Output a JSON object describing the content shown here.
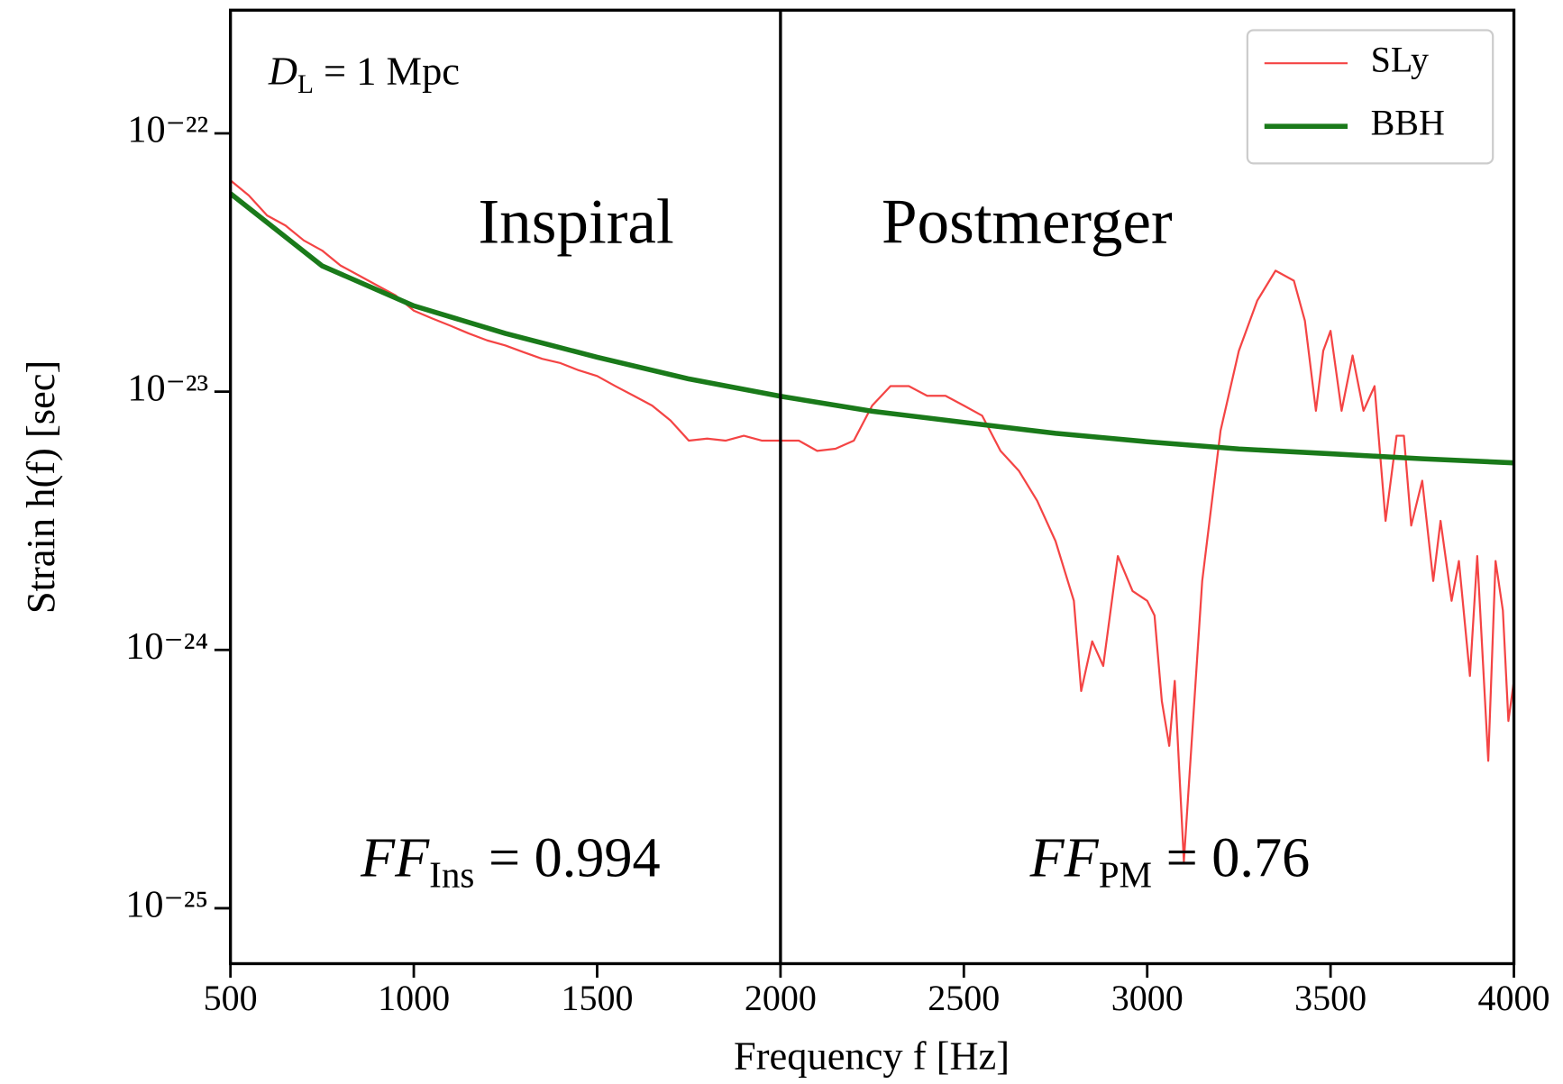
{
  "chart_data": {
    "type": "line",
    "xlabel": "Frequency  f [Hz]",
    "ylabel": "Strain  h(f) [sec]",
    "xlim": [
      500,
      4000
    ],
    "xticks": [
      500,
      1000,
      1500,
      2000,
      2500,
      3000,
      3500,
      4000
    ],
    "ylim": [
      6.1e-26,
      3e-22
    ],
    "log_y": true,
    "yticks": [
      {
        "value": 1e-25,
        "label": "10⁻²⁵"
      },
      {
        "value": 1e-24,
        "label": "10⁻²⁴"
      },
      {
        "value": 1e-23,
        "label": "10⁻²³"
      },
      {
        "value": 1e-22,
        "label": "10⁻²²"
      }
    ],
    "legend": "upper right",
    "vlines": [
      2000
    ],
    "annotations": [
      {
        "text": "D",
        "sub": "L",
        "suffix": " = 1 Mpc"
      },
      {
        "text": "Inspiral",
        "color": "#8b1a0e"
      },
      {
        "text": "Postmerger",
        "color": "#8b1a0e"
      },
      {
        "text": "FF",
        "sub": "Ins",
        "suffix": " = 0.994"
      },
      {
        "text": "FF",
        "sub": "PM",
        "suffix": " = 0.76"
      }
    ],
    "series": [
      {
        "name": "SLy",
        "color": "#f44444",
        "width": 2,
        "x": [
          500,
          550,
          600,
          650,
          700,
          750,
          800,
          850,
          900,
          950,
          1000,
          1050,
          1100,
          1150,
          1200,
          1250,
          1300,
          1350,
          1400,
          1450,
          1500,
          1550,
          1600,
          1650,
          1700,
          1750,
          1800,
          1850,
          1900,
          1950,
          2000,
          2050,
          2100,
          2150,
          2200,
          2250,
          2300,
          2350,
          2400,
          2450,
          2500,
          2550,
          2600,
          2650,
          2700,
          2750,
          2800,
          2820,
          2850,
          2880,
          2920,
          2960,
          3000,
          3020,
          3040,
          3060,
          3075,
          3100,
          3150,
          3200,
          3250,
          3300,
          3350,
          3400,
          3430,
          3460,
          3480,
          3500,
          3530,
          3560,
          3590,
          3620,
          3650,
          3680,
          3700,
          3720,
          3750,
          3780,
          3800,
          3830,
          3850,
          3880,
          3900,
          3930,
          3950,
          3970,
          3985,
          4000
        ],
        "values": [
          6.58e-23,
          5.75e-23,
          4.81e-23,
          4.4e-23,
          3.85e-23,
          3.52e-23,
          3.08e-23,
          2.82e-23,
          2.58e-23,
          2.36e-23,
          2.06e-23,
          1.92e-23,
          1.8e-23,
          1.68e-23,
          1.58e-23,
          1.51e-23,
          1.42e-23,
          1.34e-23,
          1.29e-23,
          1.21e-23,
          1.15e-23,
          1.05e-23,
          9.64e-24,
          8.83e-24,
          7.73e-24,
          6.46e-24,
          6.58e-24,
          6.46e-24,
          6.75e-24,
          6.46e-24,
          6.46e-24,
          6.46e-24,
          5.9e-24,
          6.01e-24,
          6.46e-24,
          8.83e-24,
          1.05e-23,
          1.05e-23,
          9.64e-24,
          9.64e-24,
          8.83e-24,
          8.07e-24,
          5.9e-24,
          4.94e-24,
          3.78e-24,
          2.64e-24,
          1.55e-24,
          6.93e-25,
          1.08e-24,
          8.67e-25,
          2.31e-24,
          1.69e-24,
          1.55e-24,
          1.36e-24,
          6.34e-25,
          4.25e-25,
          7.59e-25,
          1.52e-25,
          1.85e-24,
          7.06e-24,
          1.44e-23,
          2.25e-23,
          2.94e-23,
          2.69e-23,
          1.88e-23,
          8.43e-24,
          1.44e-23,
          1.72e-23,
          8.43e-24,
          1.38e-23,
          8.43e-24,
          1.05e-23,
          3.16e-24,
          6.75e-24,
          6.75e-24,
          3.03e-24,
          4.52e-24,
          1.85e-24,
          3.16e-24,
          1.55e-24,
          2.21e-24,
          7.93e-25,
          2.31e-24,
          3.72e-25,
          2.21e-24,
          1.42e-24,
          5.31e-25,
          7.59e-25
        ]
      },
      {
        "name": "BBH",
        "color": "#1a7a1a",
        "width": 5,
        "x": [
          500,
          750,
          1000,
          1250,
          1500,
          1750,
          2000,
          2250,
          2500,
          2750,
          3000,
          3250,
          3500,
          3750,
          4000
        ],
        "values": [
          5.85e-23,
          3.07e-23,
          2.15e-23,
          1.68e-23,
          1.36e-23,
          1.12e-23,
          9.6e-24,
          8.4e-24,
          7.6e-24,
          6.9e-24,
          6.4e-24,
          6e-24,
          5.75e-24,
          5.5e-24,
          5.3e-24
        ]
      }
    ]
  }
}
